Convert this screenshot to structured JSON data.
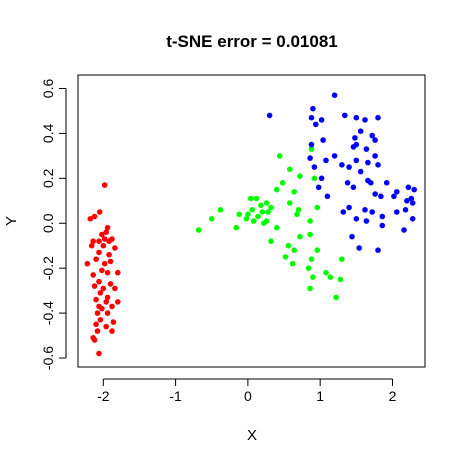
{
  "chart_data": {
    "type": "scatter",
    "title": "t-SNE error = 0.01081",
    "xlabel": "X",
    "ylabel": "Y",
    "xlim": [
      -2.35,
      2.45
    ],
    "ylim": [
      -0.64,
      0.66
    ],
    "xticks": [
      -2,
      -1,
      0,
      1,
      2
    ],
    "xtick_labels": [
      "-2",
      "-1",
      "0",
      "1",
      "2"
    ],
    "yticks": [
      -0.6,
      -0.4,
      -0.2,
      0.0,
      0.2,
      0.4,
      0.6
    ],
    "ytick_labels": [
      "-0.6",
      "-0.4",
      "-0.2",
      "0.0",
      "0.2",
      "0.4",
      "0.6"
    ],
    "grid": false,
    "legend": "none",
    "series": [
      {
        "color": "#ff0000",
        "points": [
          [
            -1.98,
            0.17
          ],
          [
            -2.05,
            0.05
          ],
          [
            -2.12,
            0.03
          ],
          [
            -2.18,
            0.02
          ],
          [
            -1.94,
            -0.02
          ],
          [
            -1.96,
            -0.04
          ],
          [
            -2.02,
            -0.05
          ],
          [
            -1.98,
            -0.07
          ],
          [
            -1.88,
            -0.07
          ],
          [
            -1.92,
            -0.08
          ],
          [
            -2.06,
            -0.08
          ],
          [
            -2.14,
            -0.08
          ],
          [
            -2.0,
            -0.1
          ],
          [
            -1.84,
            -0.11
          ],
          [
            -2.06,
            -0.13
          ],
          [
            -1.92,
            -0.14
          ],
          [
            -2.1,
            -0.16
          ],
          [
            -2.22,
            -0.18
          ],
          [
            -1.98,
            -0.18
          ],
          [
            -2.02,
            -0.21
          ],
          [
            -1.94,
            -0.22
          ],
          [
            -1.8,
            -0.22
          ],
          [
            -2.14,
            -0.23
          ],
          [
            -2.06,
            -0.26
          ],
          [
            -1.9,
            -0.27
          ],
          [
            -2.12,
            -0.28
          ],
          [
            -2.0,
            -0.29
          ],
          [
            -1.84,
            -0.29
          ],
          [
            -2.04,
            -0.31
          ],
          [
            -1.94,
            -0.33
          ],
          [
            -2.1,
            -0.34
          ],
          [
            -1.96,
            -0.35
          ],
          [
            -1.8,
            -0.35
          ],
          [
            -2.06,
            -0.37
          ],
          [
            -1.88,
            -0.37
          ],
          [
            -2.02,
            -0.38
          ],
          [
            -2.08,
            -0.4
          ],
          [
            -1.94,
            -0.4
          ],
          [
            -2.04,
            -0.43
          ],
          [
            -1.86,
            -0.44
          ],
          [
            -2.1,
            -0.45
          ],
          [
            -1.96,
            -0.46
          ],
          [
            -2.08,
            -0.48
          ],
          [
            -1.88,
            -0.48
          ],
          [
            -2.14,
            -0.51
          ],
          [
            -2.12,
            -0.52
          ],
          [
            -2.06,
            -0.58
          ],
          [
            -1.9,
            -0.17
          ],
          [
            -2.16,
            -0.1
          ]
        ]
      },
      {
        "color": "#00ff00",
        "points": [
          [
            0.44,
            0.3
          ],
          [
            0.58,
            0.24
          ],
          [
            0.88,
            0.33
          ],
          [
            0.72,
            0.21
          ],
          [
            0.48,
            0.18
          ],
          [
            0.4,
            0.15
          ],
          [
            0.92,
            0.2
          ],
          [
            0.64,
            0.14
          ],
          [
            0.04,
            0.11
          ],
          [
            0.12,
            0.11
          ],
          [
            0.26,
            0.09
          ],
          [
            0.18,
            0.08
          ],
          [
            0.58,
            0.09
          ],
          [
            0.7,
            0.06
          ],
          [
            0.96,
            0.07
          ],
          [
            0.32,
            0.07
          ],
          [
            -0.38,
            0.06
          ],
          [
            0.06,
            0.06
          ],
          [
            0.2,
            0.05
          ],
          [
            0.28,
            0.05
          ],
          [
            0.68,
            0.04
          ],
          [
            -0.12,
            0.04
          ],
          [
            0.0,
            0.04
          ],
          [
            0.14,
            0.03
          ],
          [
            -0.5,
            0.02
          ],
          [
            -0.02,
            0.02
          ],
          [
            0.08,
            0.01
          ],
          [
            0.26,
            0.01
          ],
          [
            0.22,
            0.0
          ],
          [
            0.86,
            0.01
          ],
          [
            -0.16,
            -0.02
          ],
          [
            -0.68,
            -0.03
          ],
          [
            0.4,
            -0.02
          ],
          [
            0.86,
            -0.05
          ],
          [
            0.72,
            -0.06
          ],
          [
            0.32,
            -0.08
          ],
          [
            0.56,
            -0.1
          ],
          [
            0.64,
            -0.12
          ],
          [
            0.96,
            -0.12
          ],
          [
            0.52,
            -0.15
          ],
          [
            0.88,
            -0.16
          ],
          [
            1.3,
            -0.16
          ],
          [
            0.62,
            -0.18
          ],
          [
            0.84,
            -0.2
          ],
          [
            1.08,
            -0.22
          ],
          [
            0.9,
            -0.24
          ],
          [
            1.14,
            -0.24
          ],
          [
            1.28,
            -0.25
          ],
          [
            0.86,
            -0.29
          ],
          [
            1.22,
            -0.33
          ]
        ]
      },
      {
        "color": "#0000ff",
        "points": [
          [
            1.2,
            0.57
          ],
          [
            0.3,
            0.48
          ],
          [
            0.9,
            0.51
          ],
          [
            0.88,
            0.47
          ],
          [
            1.02,
            0.46
          ],
          [
            1.34,
            0.48
          ],
          [
            1.5,
            0.47
          ],
          [
            1.62,
            0.46
          ],
          [
            1.8,
            0.47
          ],
          [
            0.94,
            0.44
          ],
          [
            1.56,
            0.41
          ],
          [
            1.72,
            0.39
          ],
          [
            1.48,
            0.38
          ],
          [
            1.76,
            0.37
          ],
          [
            1.04,
            0.37
          ],
          [
            0.88,
            0.35
          ],
          [
            1.5,
            0.35
          ],
          [
            1.46,
            0.34
          ],
          [
            1.64,
            0.33
          ],
          [
            1.2,
            0.3
          ],
          [
            1.76,
            0.3
          ],
          [
            0.86,
            0.29
          ],
          [
            1.08,
            0.28
          ],
          [
            1.5,
            0.28
          ],
          [
            1.66,
            0.27
          ],
          [
            1.8,
            0.26
          ],
          [
            1.3,
            0.26
          ],
          [
            1.4,
            0.25
          ],
          [
            0.92,
            0.25
          ],
          [
            1.56,
            0.23
          ],
          [
            1.02,
            0.2
          ],
          [
            1.66,
            0.19
          ],
          [
            1.38,
            0.18
          ],
          [
            1.7,
            0.18
          ],
          [
            1.92,
            0.18
          ],
          [
            0.98,
            0.16
          ],
          [
            1.46,
            0.16
          ],
          [
            2.22,
            0.16
          ],
          [
            2.3,
            0.15
          ],
          [
            2.06,
            0.14
          ],
          [
            1.76,
            0.13
          ],
          [
            1.1,
            0.12
          ],
          [
            1.84,
            0.12
          ],
          [
            2.02,
            0.12
          ],
          [
            2.26,
            0.11
          ],
          [
            2.2,
            0.1
          ],
          [
            2.28,
            0.09
          ],
          [
            1.4,
            0.07
          ],
          [
            1.62,
            0.06
          ],
          [
            2.18,
            0.06
          ],
          [
            1.32,
            0.05
          ],
          [
            2.06,
            0.05
          ],
          [
            1.72,
            0.05
          ],
          [
            1.86,
            0.03
          ],
          [
            1.5,
            0.02
          ],
          [
            2.28,
            0.02
          ],
          [
            1.64,
            0.01
          ],
          [
            1.44,
            -0.06
          ],
          [
            1.86,
            -0.01
          ],
          [
            1.54,
            -0.11
          ],
          [
            1.8,
            -0.12
          ],
          [
            2.16,
            -0.03
          ]
        ]
      }
    ]
  }
}
